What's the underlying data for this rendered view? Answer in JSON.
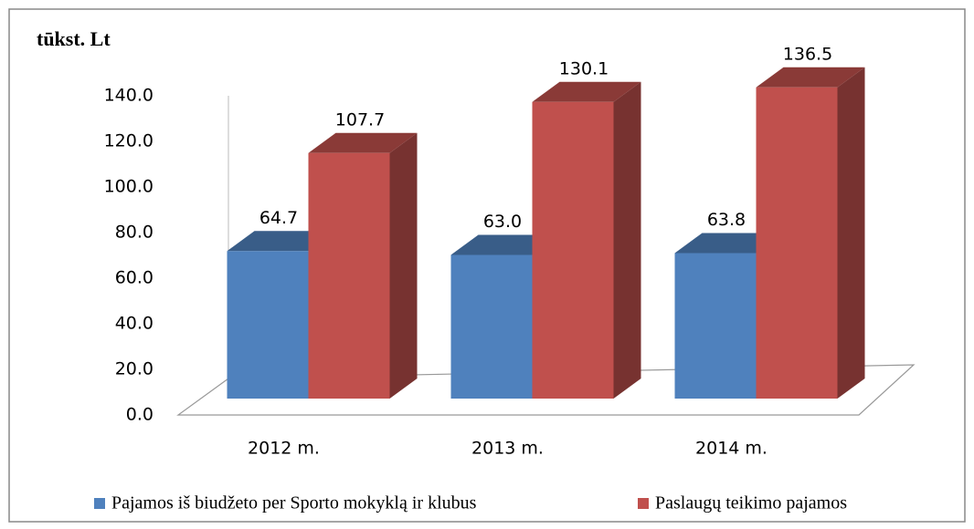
{
  "chart_data": {
    "type": "bar3d",
    "title": "tūkst. Lt",
    "categories": [
      "2012 m.",
      "2013 m.",
      "2014 m."
    ],
    "series": [
      {
        "name": "Pajamos iš biudžeto per Sporto mokyklą ir klubus",
        "color": "#4f81bd",
        "values": [
          64.7,
          63.0,
          63.8
        ],
        "value_labels": [
          "64.7",
          "63.0",
          "63.8"
        ]
      },
      {
        "name": "Paslaugų teikimo pajamos",
        "color": "#c0504d",
        "values": [
          107.7,
          130.1,
          136.5
        ],
        "value_labels": [
          "107.7",
          "130.1",
          "136.5"
        ]
      }
    ],
    "ylim": [
      0,
      140
    ],
    "yticks": [
      {
        "value": 0,
        "label": "0.0"
      },
      {
        "value": 20,
        "label": "20.0"
      },
      {
        "value": 40,
        "label": "40.0"
      },
      {
        "value": 60,
        "label": "60.0"
      },
      {
        "value": 80,
        "label": "80.0"
      },
      {
        "value": 100,
        "label": "100.0"
      },
      {
        "value": 120,
        "label": "120.0"
      },
      {
        "value": 140,
        "label": "140.0"
      }
    ],
    "grid": false,
    "legend": "bottom"
  }
}
